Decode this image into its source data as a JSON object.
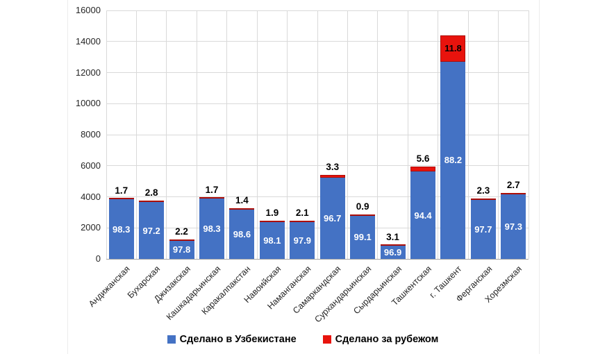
{
  "chart_data": {
    "type": "bar",
    "stacked": true,
    "title": "",
    "categories": [
      "Андижанская",
      "Бухарская",
      "Джизакская",
      "Кашкадарьинская",
      "Каракалпакстан",
      "Навоийская",
      "Наманганская",
      "Самаркандская",
      "Сурхандарьинская",
      "Сырдарьинская",
      "Ташкентская",
      "г. Ташкент",
      "Ферганская",
      "Хорезмская"
    ],
    "totals": [
      3900,
      3750,
      1250,
      3950,
      3250,
      2450,
      2450,
      5400,
      2850,
      900,
      5950,
      14400,
      3900,
      4250
    ],
    "series": [
      {
        "name": "Сделано в Узбекистане",
        "color": "#4472c4",
        "pct": [
          98.3,
          97.2,
          97.8,
          98.3,
          98.6,
          98.1,
          97.9,
          96.7,
          99.1,
          96.9,
          94.4,
          88.2,
          97.7,
          97.3
        ],
        "values": [
          3834,
          3645,
          1223,
          3883,
          3205,
          2403,
          2399,
          5222,
          2824,
          872,
          5617,
          12701,
          3810,
          4135
        ]
      },
      {
        "name": "Сделано за рубежом",
        "color": "#e8130d",
        "pct": [
          1.7,
          2.8,
          2.2,
          1.7,
          1.4,
          1.9,
          2.1,
          3.3,
          0.9,
          3.1,
          5.6,
          11.8,
          2.3,
          2.7
        ],
        "values": [
          66,
          105,
          27,
          67,
          45,
          47,
          51,
          178,
          26,
          28,
          333,
          1699,
          90,
          115
        ]
      }
    ],
    "ylim": [
      0,
      16000
    ],
    "ytick_step": 2000,
    "yticks": [
      "0",
      "2000",
      "4000",
      "6000",
      "8000",
      "10000",
      "12000",
      "14000",
      "16000"
    ],
    "grid": true,
    "legend_position": "bottom",
    "colors": {
      "gridline": "#d9d9d9",
      "axis_line": "#a6a6a6",
      "domestic_label_text": "#ffffff",
      "foreign_label_text": "#000000"
    }
  },
  "legend": {
    "items": [
      {
        "label": "Сделано в Узбекистане",
        "color": "#4472c4"
      },
      {
        "label": "Сделано за рубежом",
        "color": "#e8130d"
      }
    ]
  }
}
